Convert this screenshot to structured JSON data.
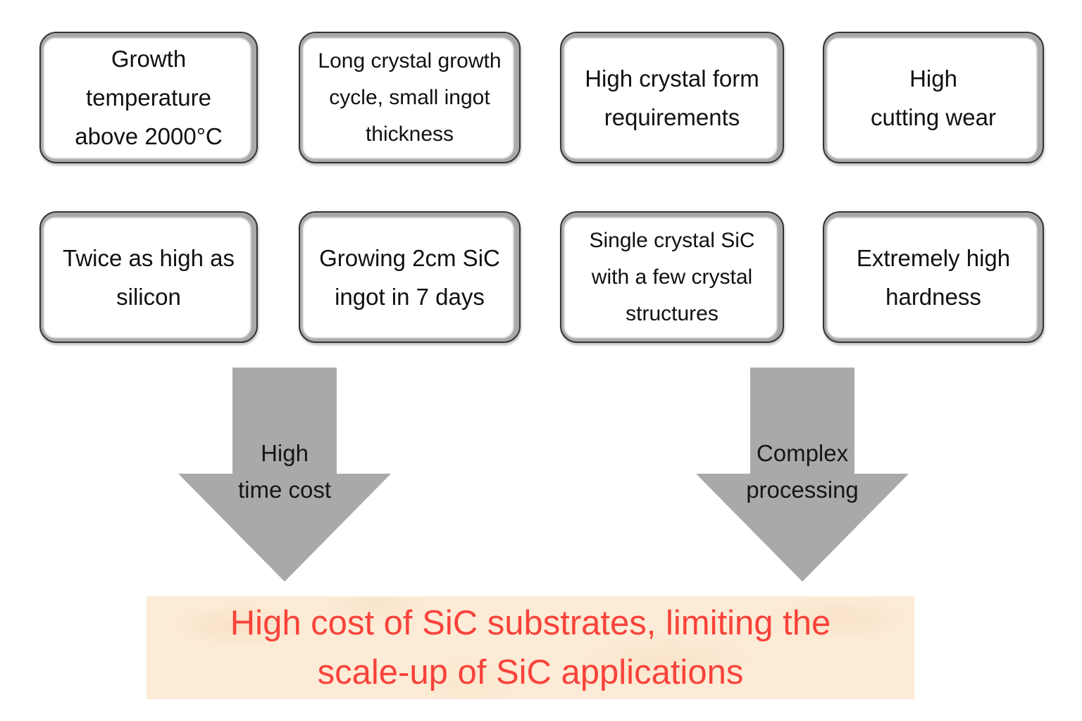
{
  "boxes": [
    {
      "id": "growth-temperature",
      "text": "Growth\ntemperature\nabove 2000°C"
    },
    {
      "id": "growth-cycle",
      "text": "Long crystal growth\ncycle, small ingot\nthickness"
    },
    {
      "id": "crystal-form",
      "text": "High crystal form\nrequirements"
    },
    {
      "id": "cutting-wear",
      "text": "High\ncutting wear"
    },
    {
      "id": "twice-silicon",
      "text": "Twice as high as\nsilicon"
    },
    {
      "id": "ingot-seven-days",
      "text": "Growing 2cm SiC\ningot in 7 days"
    },
    {
      "id": "crystal-structures",
      "text": "Single crystal SiC\nwith a few crystal\nstructures"
    },
    {
      "id": "extreme-hardness",
      "text": "Extremely high\nhardness"
    }
  ],
  "arrows": [
    {
      "id": "high-time-cost",
      "label": "High\ntime cost"
    },
    {
      "id": "complex-processing",
      "label": "Complex\nprocessing"
    }
  ],
  "banner": {
    "text": "High cost of SiC substrates, limiting the\nscale-up of SiC applications"
  },
  "colors": {
    "arrow": "#a9a9a9",
    "box_border": "#333333",
    "box_band": "#a9a9a9",
    "banner_bg": "#fcebd6",
    "banner_text": "#f9423a",
    "text": "#111111"
  }
}
